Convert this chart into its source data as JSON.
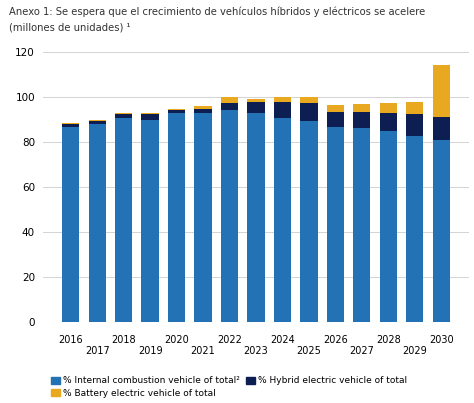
{
  "title_line1": "Anexo 1: Se espera que el crecimiento de vehículos híbridos y eléctricos se acelere",
  "title_line2": "(millones de unidades) ¹",
  "years": [
    2016,
    2017,
    2018,
    2019,
    2020,
    2021,
    2022,
    2023,
    2024,
    2025,
    2026,
    2027,
    2028,
    2029,
    2030
  ],
  "ice": [
    87.0,
    88.0,
    91.0,
    90.0,
    93.0,
    93.0,
    94.5,
    93.0,
    91.0,
    89.5,
    87.0,
    86.5,
    85.0,
    83.0,
    81.0
  ],
  "hybrid": [
    1.0,
    1.5,
    1.5,
    2.5,
    1.5,
    2.0,
    3.0,
    5.0,
    7.0,
    8.0,
    6.5,
    7.0,
    8.0,
    9.5,
    10.5
  ],
  "battery": [
    0.5,
    0.5,
    0.5,
    0.5,
    0.5,
    1.0,
    2.5,
    1.5,
    2.0,
    2.5,
    3.0,
    3.5,
    4.5,
    5.5,
    23.0
  ],
  "color_ice": "#2272B5",
  "color_hybrid": "#0D1F52",
  "color_battery": "#E8A820",
  "ylim": [
    0,
    120
  ],
  "yticks": [
    0,
    20,
    40,
    60,
    80,
    100,
    120
  ],
  "legend_ice": "% Internal combustion vehicle of total²",
  "legend_battery": "% Battery electric vehicle of total",
  "legend_hybrid": "% Hybrid electric vehicle of total",
  "bg_color": "#FFFFFF"
}
